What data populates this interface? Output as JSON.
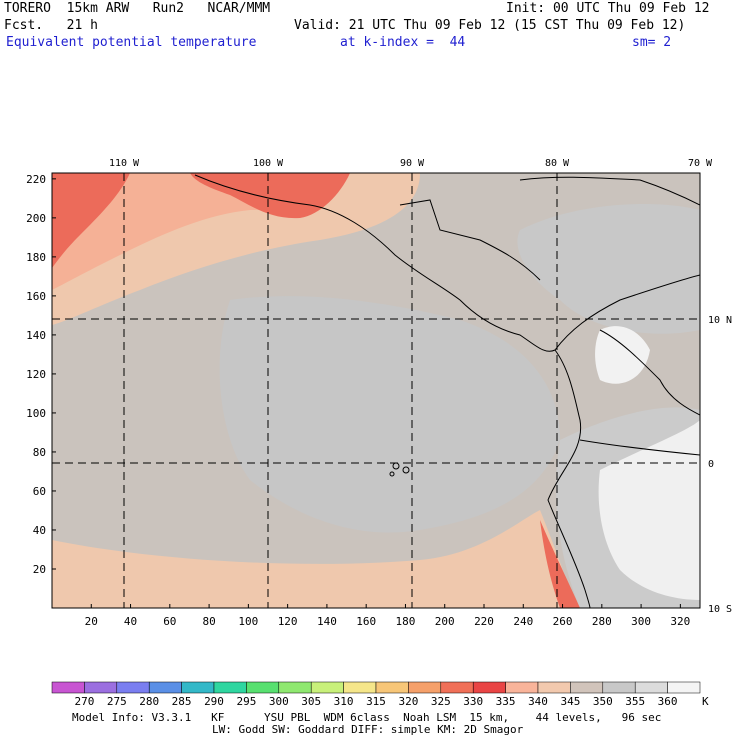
{
  "header": {
    "model": "TORERO  15km ARW   Run2   NCAR/MMM",
    "init": "Init: 00 UTC Thu 09 Feb 12",
    "fcst": "Fcst.   21 h",
    "valid": "Valid: 21 UTC Thu 09 Feb 12 (15 CST Thu 09 Feb 12)",
    "field": "Equivalent potential temperature",
    "level": "at k-index =  44",
    "smooth": "sm= 2"
  },
  "map": {
    "x_ticks": [
      "20",
      "40",
      "60",
      "80",
      "100",
      "120",
      "140",
      "160",
      "180",
      "200",
      "220",
      "240",
      "260",
      "280",
      "300",
      "320"
    ],
    "y_ticks": [
      "20",
      "40",
      "60",
      "80",
      "100",
      "120",
      "140",
      "160",
      "180",
      "200",
      "220"
    ],
    "lon_labels": [
      "110 W",
      "100 W",
      "90 W",
      "80 W",
      "70 W"
    ],
    "lat_labels": [
      "10 N",
      "0",
      "10 S"
    ]
  },
  "colorbar": {
    "levels": [
      "270",
      "275",
      "280",
      "285",
      "290",
      "295",
      "300",
      "305",
      "310",
      "315",
      "320",
      "325",
      "330",
      "335",
      "340",
      "345",
      "350",
      "355",
      "360"
    ],
    "unit": "K",
    "colors": [
      "#c855d2",
      "#9b6fe0",
      "#7a7ef0",
      "#5a8fe6",
      "#33b8c8",
      "#2fd6a0",
      "#58e070",
      "#8fe870",
      "#c8f07a",
      "#f5e68a",
      "#f7c678",
      "#f5a06a",
      "#f07058",
      "#e94545",
      "#f9b49a",
      "#f2c9ae",
      "#d1c4bb",
      "#c8c8c8",
      "#dcdcdc",
      "#f4f4f4"
    ]
  },
  "footer": {
    "line1": "Model Info: V3.3.1   KF      YSU PBL  WDM 6class  Noah LSM  15 km,    44 levels,   96 sec",
    "line2": "LW: Godd SW: Goddard DIFF: simple KM: 2D Smagor"
  }
}
